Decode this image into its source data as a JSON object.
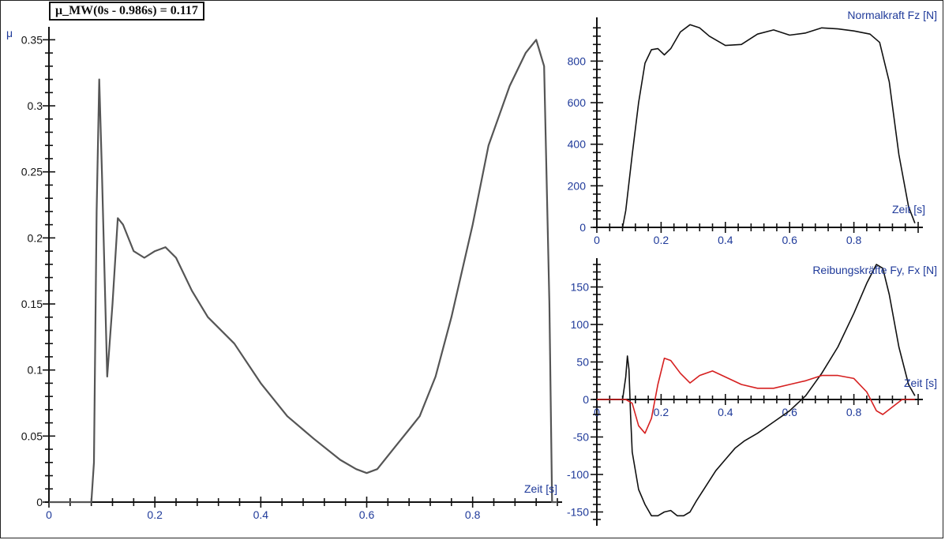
{
  "annotation": "μ_MW(0s - 0.986s) = 0.117",
  "chart_data": [
    {
      "type": "line",
      "ylabel": "μ",
      "xlabel": "Zeit [s]",
      "xlim": [
        0,
        0.96
      ],
      "ylim": [
        0,
        0.355
      ],
      "xticks": [
        0,
        0.2,
        0.4,
        0.6,
        0.8
      ],
      "yticks": [
        0,
        0.05,
        0.1,
        0.15,
        0.2,
        0.25,
        0.3,
        0.35
      ],
      "colors": {
        "line": "#555555",
        "axis": "#111111",
        "text": "#1f3a9a"
      },
      "series": [
        {
          "values": [
            [
              0,
              0
            ],
            [
              0.08,
              0
            ],
            [
              0.085,
              0.03
            ],
            [
              0.09,
              0.22
            ],
            [
              0.095,
              0.32
            ],
            [
              0.1,
              0.25
            ],
            [
              0.11,
              0.095
            ],
            [
              0.12,
              0.15
            ],
            [
              0.13,
              0.215
            ],
            [
              0.14,
              0.21
            ],
            [
              0.16,
              0.19
            ],
            [
              0.18,
              0.185
            ],
            [
              0.2,
              0.19
            ],
            [
              0.22,
              0.193
            ],
            [
              0.24,
              0.185
            ],
            [
              0.27,
              0.16
            ],
            [
              0.3,
              0.14
            ],
            [
              0.35,
              0.12
            ],
            [
              0.4,
              0.09
            ],
            [
              0.45,
              0.065
            ],
            [
              0.5,
              0.048
            ],
            [
              0.55,
              0.032
            ],
            [
              0.58,
              0.025
            ],
            [
              0.6,
              0.022
            ],
            [
              0.62,
              0.025
            ],
            [
              0.65,
              0.04
            ],
            [
              0.68,
              0.055
            ],
            [
              0.7,
              0.065
            ],
            [
              0.73,
              0.095
            ],
            [
              0.76,
              0.14
            ],
            [
              0.8,
              0.21
            ],
            [
              0.83,
              0.27
            ],
            [
              0.87,
              0.315
            ],
            [
              0.9,
              0.34
            ],
            [
              0.92,
              0.35
            ],
            [
              0.935,
              0.33
            ],
            [
              0.945,
              0.15
            ],
            [
              0.95,
              0.0
            ],
            [
              0.96,
              0
            ]
          ]
        }
      ]
    },
    {
      "type": "line",
      "title": "Normalkraft Fz [N]",
      "xlabel": "Zeit [s]",
      "xlim": [
        0,
        1.0
      ],
      "ylim": [
        0,
        980
      ],
      "xticks": [
        0,
        0.2,
        0.4,
        0.6,
        0.8
      ],
      "yticks": [
        0,
        200,
        400,
        600,
        800
      ],
      "colors": {
        "line": "#111111",
        "axis": "#111111",
        "text": "#1f3a9a"
      },
      "series": [
        {
          "values": [
            [
              0.08,
              0
            ],
            [
              0.09,
              80
            ],
            [
              0.11,
              350
            ],
            [
              0.13,
              600
            ],
            [
              0.15,
              790
            ],
            [
              0.17,
              855
            ],
            [
              0.19,
              860
            ],
            [
              0.21,
              830
            ],
            [
              0.23,
              860
            ],
            [
              0.26,
              940
            ],
            [
              0.29,
              975
            ],
            [
              0.32,
              960
            ],
            [
              0.35,
              920
            ],
            [
              0.4,
              875
            ],
            [
              0.45,
              880
            ],
            [
              0.5,
              930
            ],
            [
              0.55,
              950
            ],
            [
              0.6,
              925
            ],
            [
              0.65,
              935
            ],
            [
              0.7,
              960
            ],
            [
              0.75,
              955
            ],
            [
              0.8,
              945
            ],
            [
              0.85,
              930
            ],
            [
              0.88,
              890
            ],
            [
              0.91,
              700
            ],
            [
              0.94,
              350
            ],
            [
              0.97,
              100
            ],
            [
              0.99,
              20
            ]
          ]
        }
      ]
    },
    {
      "type": "line",
      "title": "Reibungskräfte Fy, Fx [N]",
      "xlabel": "Zeit [s]",
      "xlim": [
        0,
        1.0
      ],
      "ylim": [
        -160,
        180
      ],
      "xticks": [
        0,
        0.2,
        0.4,
        0.6,
        0.8
      ],
      "yticks": [
        -150,
        -100,
        -50,
        0,
        50,
        100,
        150
      ],
      "colors": {
        "axis": "#111111",
        "text": "#1f3a9a"
      },
      "series": [
        {
          "color": "#111111",
          "values": [
            [
              0.08,
              0
            ],
            [
              0.09,
              30
            ],
            [
              0.095,
              58
            ],
            [
              0.1,
              40
            ],
            [
              0.105,
              -20
            ],
            [
              0.11,
              -70
            ],
            [
              0.13,
              -120
            ],
            [
              0.15,
              -140
            ],
            [
              0.17,
              -155
            ],
            [
              0.19,
              -155
            ],
            [
              0.21,
              -150
            ],
            [
              0.23,
              -148
            ],
            [
              0.25,
              -155
            ],
            [
              0.27,
              -155
            ],
            [
              0.29,
              -150
            ],
            [
              0.31,
              -135
            ],
            [
              0.34,
              -115
            ],
            [
              0.37,
              -95
            ],
            [
              0.4,
              -80
            ],
            [
              0.43,
              -65
            ],
            [
              0.46,
              -55
            ],
            [
              0.5,
              -45
            ],
            [
              0.55,
              -30
            ],
            [
              0.6,
              -15
            ],
            [
              0.65,
              5
            ],
            [
              0.7,
              35
            ],
            [
              0.75,
              70
            ],
            [
              0.8,
              115
            ],
            [
              0.84,
              155
            ],
            [
              0.87,
              180
            ],
            [
              0.89,
              175
            ],
            [
              0.91,
              140
            ],
            [
              0.94,
              70
            ],
            [
              0.97,
              20
            ],
            [
              0.99,
              5
            ]
          ]
        },
        {
          "color": "#d62020",
          "values": [
            [
              0.0,
              0
            ],
            [
              0.09,
              0
            ],
            [
              0.11,
              -5
            ],
            [
              0.13,
              -35
            ],
            [
              0.15,
              -45
            ],
            [
              0.17,
              -25
            ],
            [
              0.19,
              20
            ],
            [
              0.21,
              55
            ],
            [
              0.23,
              52
            ],
            [
              0.26,
              35
            ],
            [
              0.29,
              22
            ],
            [
              0.32,
              32
            ],
            [
              0.36,
              38
            ],
            [
              0.4,
              30
            ],
            [
              0.45,
              20
            ],
            [
              0.5,
              15
            ],
            [
              0.55,
              15
            ],
            [
              0.6,
              20
            ],
            [
              0.65,
              25
            ],
            [
              0.7,
              32
            ],
            [
              0.75,
              32
            ],
            [
              0.8,
              28
            ],
            [
              0.84,
              10
            ],
            [
              0.87,
              -15
            ],
            [
              0.89,
              -20
            ],
            [
              0.92,
              -10
            ],
            [
              0.95,
              0
            ],
            [
              0.99,
              0
            ]
          ]
        }
      ]
    }
  ]
}
